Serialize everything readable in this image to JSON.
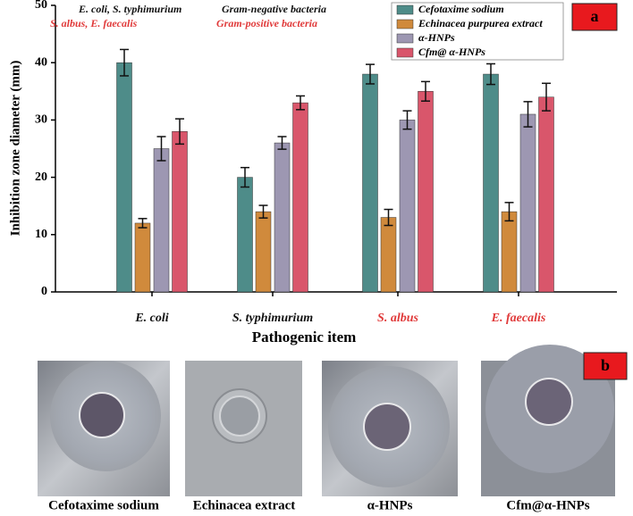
{
  "chart_data": {
    "type": "bar",
    "panel_label": "a",
    "ylabel": "Inhibition zone diameter (mm)",
    "xlabel": "Pathogenic item",
    "categories": [
      "E. coli",
      "S. typhimurium",
      "S. albus",
      "E. faecalis"
    ],
    "category_colors": [
      "#111111",
      "#111111",
      "#e03a3a",
      "#e03a3a"
    ],
    "annotations": [
      {
        "text": "E. coli, S. typhimurium",
        "color": "#111111"
      },
      {
        "text": "Gram-negative bacteria",
        "color": "#111111"
      },
      {
        "text": "S. albus, E. faecalis",
        "color": "#e03a3a"
      },
      {
        "text": "Gram-positive bacteria",
        "color": "#e03a3a"
      }
    ],
    "series": [
      {
        "name": "Cefotaxime sodium",
        "color": "#4e8c89",
        "values": [
          40,
          20,
          38,
          38
        ],
        "errors": [
          2.3,
          1.7,
          1.7,
          1.8
        ]
      },
      {
        "name": "Echinacea purpurea extract",
        "color": "#d08a3c",
        "values": [
          12,
          14,
          13,
          14
        ],
        "errors": [
          0.8,
          1.1,
          1.4,
          1.6
        ]
      },
      {
        "name": "α-HNPs",
        "color": "#9d97b2",
        "values": [
          25,
          26,
          30,
          31
        ],
        "errors": [
          2.1,
          1.1,
          1.6,
          2.2
        ]
      },
      {
        "name": "Cfm@ α-HNPs",
        "color": "#d9566b",
        "values": [
          28,
          33,
          35,
          34
        ],
        "errors": [
          2.2,
          1.2,
          1.7,
          2.4
        ]
      }
    ],
    "ylim": [
      0,
      50
    ],
    "yticks": [
      0,
      10,
      20,
      30,
      40,
      50
    ],
    "grid": false,
    "legend": "top-right"
  },
  "panel_b": {
    "label": "b",
    "captions": [
      "Cefotaxime sodium",
      "Echinacea extract",
      "α-HNPs",
      "Cfm@α-HNPs"
    ]
  }
}
